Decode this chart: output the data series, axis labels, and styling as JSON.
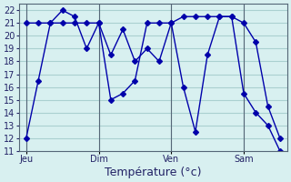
{
  "background_color": "#d8f0f0",
  "grid_color": "#aad0d0",
  "line_color": "#0000aa",
  "marker_color": "#0000aa",
  "xlabel": "Température (°c)",
  "xlabel_fontsize": 9,
  "ylim": [
    11,
    22.5
  ],
  "yticks": [
    11,
    12,
    13,
    14,
    15,
    16,
    17,
    18,
    19,
    20,
    21,
    22
  ],
  "xtick_labels": [
    "Jeu",
    "Dim",
    "Ven",
    "Sam"
  ],
  "xtick_positions": [
    0,
    3,
    6,
    9
  ],
  "vline_positions": [
    0,
    3,
    6,
    9
  ],
  "series1_x": [
    0,
    0.5,
    1.0,
    1.5,
    2.0,
    2.5,
    3.0,
    3.5,
    4.0,
    4.5,
    5.0,
    5.5,
    6.0,
    6.5,
    7.0,
    7.5,
    8.0,
    8.5,
    9.0,
    9.5,
    10.0,
    10.5
  ],
  "series1_y": [
    12,
    16.5,
    21,
    22,
    21.5,
    19,
    21,
    18.5,
    20.5,
    18,
    19,
    18,
    21,
    16,
    12.5,
    18.5,
    21.5,
    21.5,
    21,
    19.5,
    14.5,
    12
  ],
  "series2_x": [
    0,
    0.5,
    1.0,
    1.5,
    2.0,
    2.5,
    3.0,
    3.5,
    4.0,
    4.5,
    5.0,
    5.5,
    6.0,
    6.5,
    7.0,
    7.5,
    8.0,
    8.5,
    9.0,
    9.5,
    10.0,
    10.5
  ],
  "series2_y": [
    21,
    21,
    21,
    21,
    21,
    21,
    21,
    15,
    15.5,
    16.5,
    21,
    21,
    21,
    21.5,
    21.5,
    21.5,
    21.5,
    21.5,
    15.5,
    14,
    13,
    11
  ]
}
